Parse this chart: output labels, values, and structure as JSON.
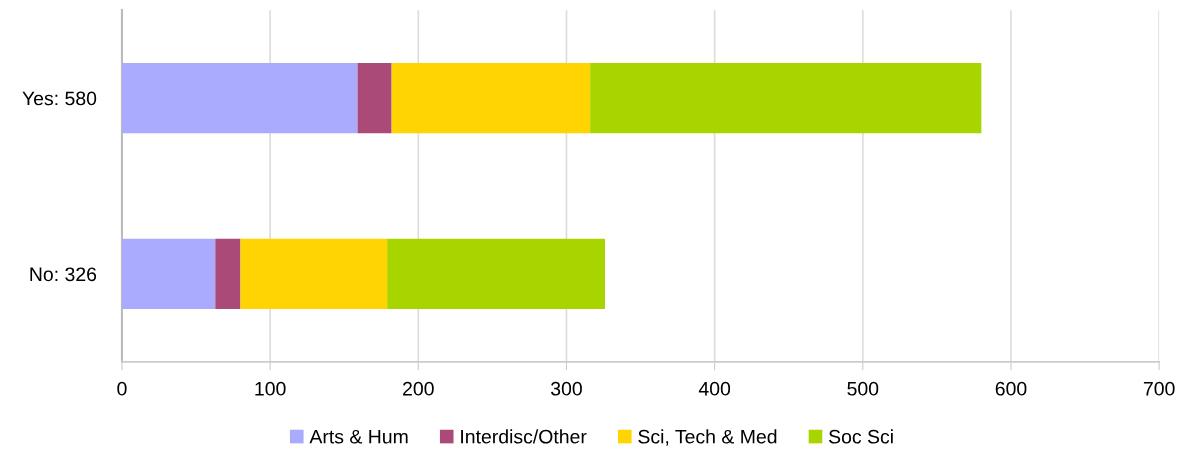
{
  "chart_data": {
    "type": "bar",
    "orientation": "horizontal",
    "stacked": true,
    "categories": [
      "Yes: 580",
      "No: 326"
    ],
    "series": [
      {
        "name": "Arts & Hum",
        "color": "#aaaaff",
        "values": [
          159,
          63
        ]
      },
      {
        "name": "Interdisc/Other",
        "color": "#aa4a78",
        "values": [
          23,
          17
        ]
      },
      {
        "name": "Sci, Tech & Med",
        "color": "#ffd400",
        "values": [
          134,
          99
        ]
      },
      {
        "name": "Soc Sci",
        "color": "#a8d400",
        "values": [
          264,
          147
        ]
      }
    ],
    "xlim": [
      0,
      700
    ],
    "xticks": [
      0,
      100,
      200,
      300,
      400,
      500,
      600,
      700
    ],
    "grid": "x",
    "legend": "bottom"
  }
}
